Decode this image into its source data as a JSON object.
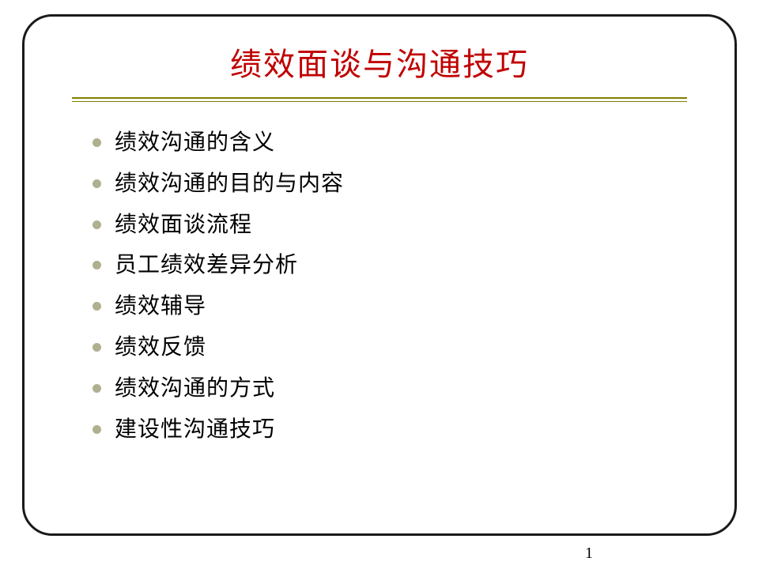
{
  "slide": {
    "title": "绩效面谈与沟通技巧",
    "title_color": "#c00000",
    "title_fontsize": 40,
    "divider_color": "#808000",
    "bullet_color": "#b0b090",
    "text_color": "#000000",
    "item_fontsize": 28,
    "frame_border_color": "#1a1a1a",
    "frame_border_radius": 38,
    "background_color": "#ffffff",
    "items": [
      "绩效沟通的含义",
      "绩效沟通的目的与内容",
      "绩效面谈流程",
      "员工绩效差异分析",
      "绩效辅导",
      "绩效反馈",
      "绩效沟通的方式",
      "建设性沟通技巧"
    ],
    "page_number": "1"
  }
}
